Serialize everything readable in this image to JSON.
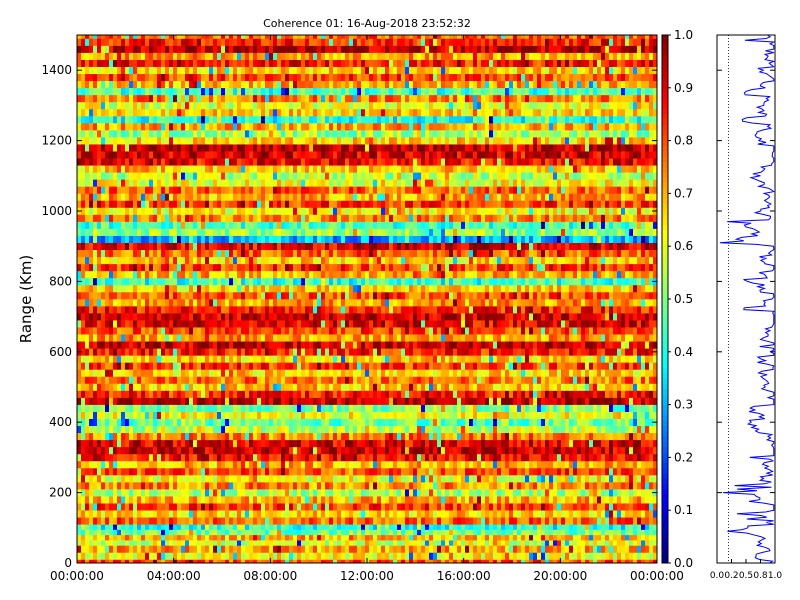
{
  "chart_data": [
    {
      "type": "heatmap",
      "title": "Coherence 01: 16-Aug-2018 23:52:32",
      "xlabel": "",
      "ylabel": "Range (Km)",
      "xlim": [
        "00:00:00",
        "24:00:00"
      ],
      "ylim": [
        0,
        1500
      ],
      "x_ticks": [
        "00:00:00",
        "04:00:00",
        "08:00:00",
        "12:00:00",
        "16:00:00",
        "20:00:00",
        "00:00:00"
      ],
      "y_ticks": [
        "0",
        "200",
        "400",
        "600",
        "800",
        "1000",
        "1200",
        "1400"
      ],
      "y_tick_values": [
        0,
        200,
        400,
        600,
        800,
        1000,
        1200,
        1400
      ],
      "grid": false,
      "value_range": [
        0,
        1
      ],
      "colormap": "jet",
      "row_profile": [
        {
          "range": 0,
          "level": 0.8
        },
        {
          "range": 10,
          "level": 0.62
        },
        {
          "range": 30,
          "level": 0.72
        },
        {
          "range": 50,
          "level": 0.58
        },
        {
          "range": 65,
          "level": 0.7
        },
        {
          "range": 80,
          "level": 0.48
        },
        {
          "range": 95,
          "level": 0.4
        },
        {
          "range": 110,
          "level": 0.78
        },
        {
          "range": 130,
          "level": 0.66
        },
        {
          "range": 150,
          "level": 0.82
        },
        {
          "range": 170,
          "level": 0.7
        },
        {
          "range": 190,
          "level": 0.55
        },
        {
          "range": 210,
          "level": 0.74
        },
        {
          "range": 230,
          "level": 0.62
        },
        {
          "range": 250,
          "level": 0.8
        },
        {
          "range": 270,
          "level": 0.7
        },
        {
          "range": 290,
          "level": 0.88
        },
        {
          "range": 310,
          "level": 0.93
        },
        {
          "range": 330,
          "level": 0.9
        },
        {
          "range": 350,
          "level": 0.75
        },
        {
          "range": 370,
          "level": 0.56
        },
        {
          "range": 390,
          "level": 0.48
        },
        {
          "range": 410,
          "level": 0.62
        },
        {
          "range": 430,
          "level": 0.5
        },
        {
          "range": 450,
          "level": 0.95
        },
        {
          "range": 470,
          "level": 0.85
        },
        {
          "range": 490,
          "level": 0.68
        },
        {
          "range": 510,
          "level": 0.76
        },
        {
          "range": 530,
          "level": 0.66
        },
        {
          "range": 550,
          "level": 0.83
        },
        {
          "range": 570,
          "level": 0.66
        },
        {
          "range": 590,
          "level": 0.85
        },
        {
          "range": 610,
          "level": 0.94
        },
        {
          "range": 630,
          "level": 0.72
        },
        {
          "range": 650,
          "level": 0.8
        },
        {
          "range": 670,
          "level": 0.9
        },
        {
          "range": 690,
          "level": 0.93
        },
        {
          "range": 710,
          "level": 0.85
        },
        {
          "range": 730,
          "level": 0.72
        },
        {
          "range": 750,
          "level": 0.8
        },
        {
          "range": 770,
          "level": 0.66
        },
        {
          "range": 790,
          "level": 0.42
        },
        {
          "range": 810,
          "level": 0.7
        },
        {
          "range": 830,
          "level": 0.82
        },
        {
          "range": 850,
          "level": 0.66
        },
        {
          "range": 870,
          "level": 0.78
        },
        {
          "range": 890,
          "level": 0.9
        },
        {
          "range": 910,
          "level": 0.3
        },
        {
          "range": 930,
          "level": 0.52
        },
        {
          "range": 950,
          "level": 0.44
        },
        {
          "range": 970,
          "level": 0.75
        },
        {
          "range": 990,
          "level": 0.62
        },
        {
          "range": 1010,
          "level": 0.82
        },
        {
          "range": 1030,
          "level": 0.7
        },
        {
          "range": 1050,
          "level": 0.78
        },
        {
          "range": 1070,
          "level": 0.62
        },
        {
          "range": 1090,
          "level": 0.55
        },
        {
          "range": 1110,
          "level": 0.68
        },
        {
          "range": 1130,
          "level": 0.88
        },
        {
          "range": 1150,
          "level": 0.92
        },
        {
          "range": 1170,
          "level": 0.95
        },
        {
          "range": 1190,
          "level": 0.66
        },
        {
          "range": 1210,
          "level": 0.52
        },
        {
          "range": 1230,
          "level": 0.72
        },
        {
          "range": 1250,
          "level": 0.4
        },
        {
          "range": 1270,
          "level": 0.66
        },
        {
          "range": 1290,
          "level": 0.6
        },
        {
          "range": 1310,
          "level": 0.74
        },
        {
          "range": 1330,
          "level": 0.44
        },
        {
          "range": 1350,
          "level": 0.7
        },
        {
          "range": 1370,
          "level": 0.8
        },
        {
          "range": 1390,
          "level": 0.66
        },
        {
          "range": 1410,
          "level": 0.85
        },
        {
          "range": 1430,
          "level": 0.72
        },
        {
          "range": 1450,
          "level": 0.95
        },
        {
          "range": 1470,
          "level": 0.85
        },
        {
          "range": 1490,
          "level": 0.78
        }
      ]
    },
    {
      "type": "colorbar",
      "range": [
        0,
        1
      ],
      "ticks": [
        "0.0",
        "0.1",
        "0.2",
        "0.3",
        "0.4",
        "0.5",
        "0.6",
        "0.7",
        "0.8",
        "0.9",
        "1.0"
      ],
      "tick_values": [
        0,
        0.1,
        0.2,
        0.3,
        0.4,
        0.5,
        0.6,
        0.7,
        0.8,
        0.9,
        1.0
      ]
    },
    {
      "type": "line",
      "series": [
        {
          "color": "#0000ff"
        }
      ],
      "xlim": [
        0,
        1
      ],
      "ylim": [
        0,
        1500
      ],
      "x_ticks": [
        "0.0",
        "0.2",
        "0.5",
        "0.8",
        "1.0"
      ],
      "x_tick_values": [
        0,
        0.25,
        0.5,
        0.75,
        1.0
      ],
      "reference_line_x": 0.2,
      "grid": false
    }
  ]
}
